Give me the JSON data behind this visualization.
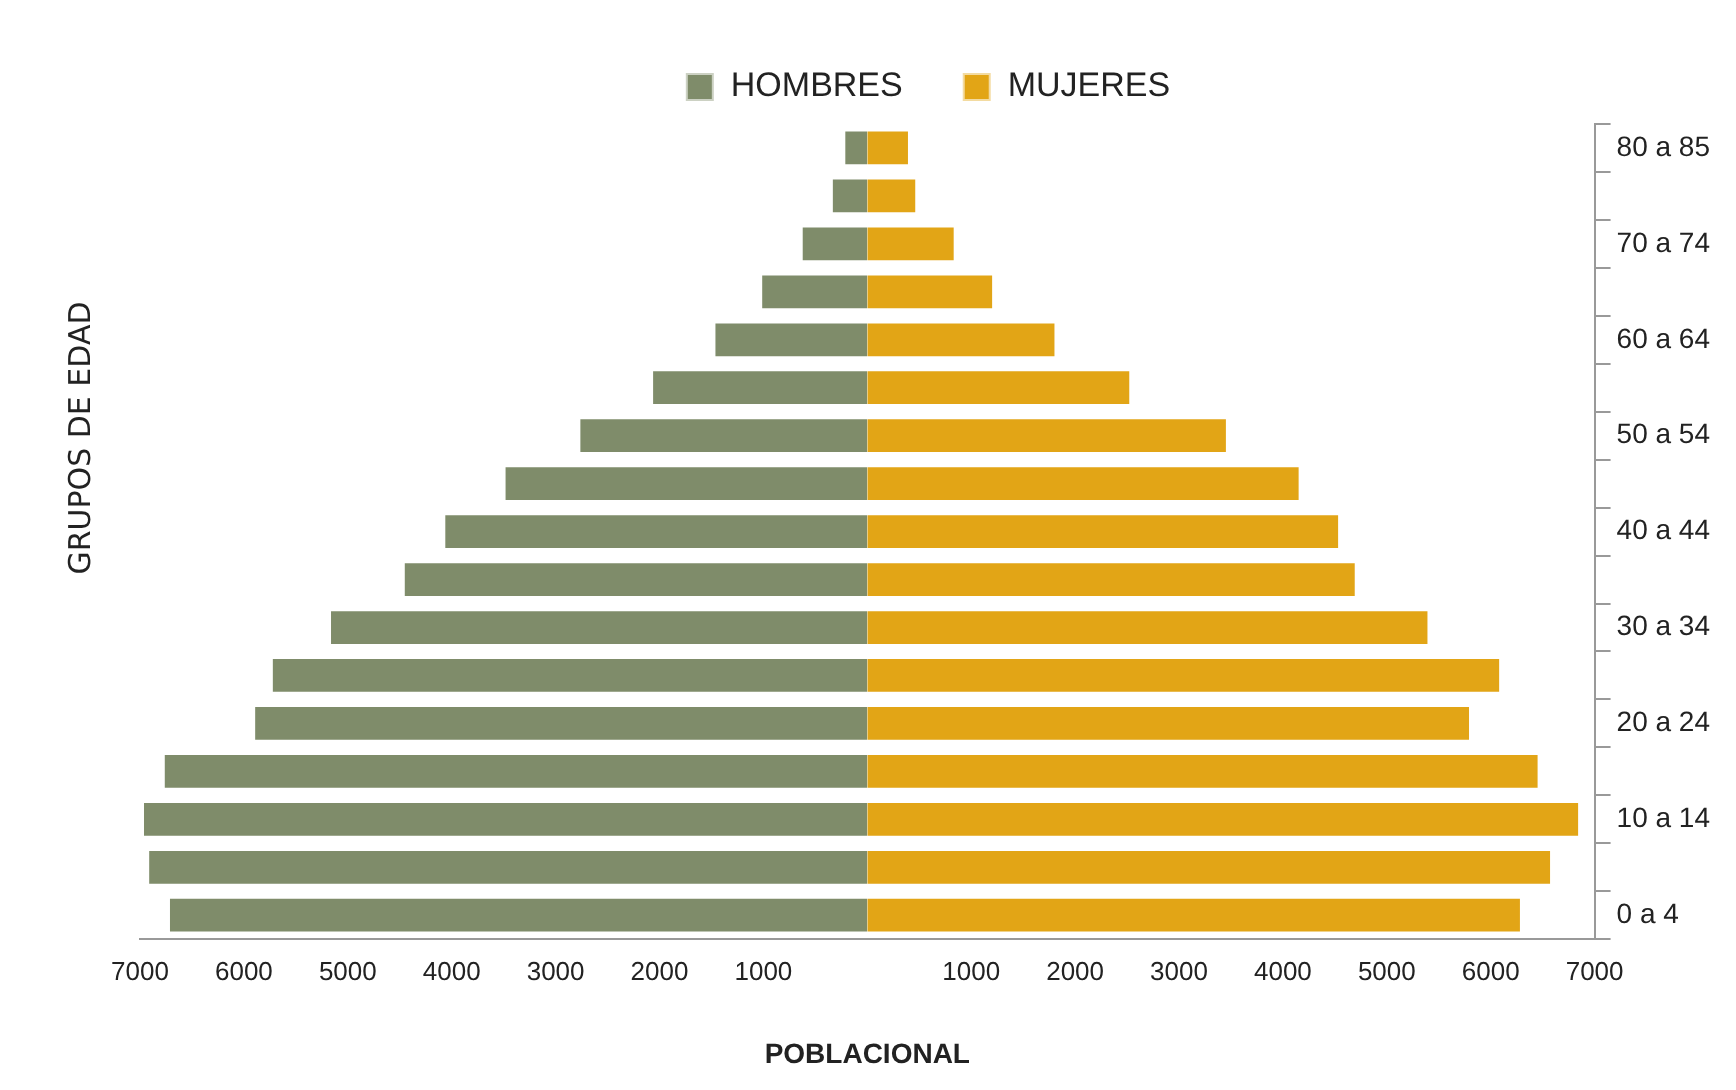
{
  "chart_data": {
    "type": "bar",
    "orientation": "horizontal",
    "stacked": true,
    "xlabel": "POBLACIONAL",
    "ylabel": "GRUPOS DE EDAD",
    "legend": "top",
    "grid": false,
    "categories": [
      "80 a 85",
      null,
      "70 a 74",
      null,
      "60 a 64",
      null,
      "50 a 54",
      null,
      "40 a 44",
      null,
      "30 a 34",
      null,
      "20 a 24",
      null,
      "10 a 14",
      null,
      "0 a 4"
    ],
    "series": [
      {
        "name": "HOMBRES",
        "color": "#7f8c6a",
        "values": [
          -250,
          -370,
          -660,
          -1050,
          -1500,
          -2100,
          -2800,
          -3520,
          -4100,
          -4490,
          -5200,
          -5760,
          -5930,
          -6800,
          -7000,
          -6950,
          -6750
        ]
      },
      {
        "name": "MUJERES",
        "color": "#e2a516",
        "values": [
          430,
          500,
          870,
          1240,
          1840,
          2560,
          3490,
          4190,
          4570,
          4730,
          5430,
          6120,
          5830,
          6490,
          6880,
          6610,
          6320
        ]
      }
    ],
    "xlim": [
      -7000,
      7000
    ],
    "xticks": [
      {
        "value": -7000,
        "label": "7000"
      },
      {
        "value": -6000,
        "label": "6000"
      },
      {
        "value": -5000,
        "label": "5000"
      },
      {
        "value": -4000,
        "label": "4000"
      },
      {
        "value": -3000,
        "label": "3000"
      },
      {
        "value": -2000,
        "label": "2000"
      },
      {
        "value": -1000,
        "label": "1000"
      },
      {
        "value": 1000,
        "label": "1000"
      },
      {
        "value": 2000,
        "label": "2000"
      },
      {
        "value": 3000,
        "label": "3000"
      },
      {
        "value": 4000,
        "label": "4000"
      },
      {
        "value": 5000,
        "label": "5000"
      },
      {
        "value": 6000,
        "label": "6000"
      },
      {
        "value": 7000,
        "label": "7000"
      }
    ]
  }
}
